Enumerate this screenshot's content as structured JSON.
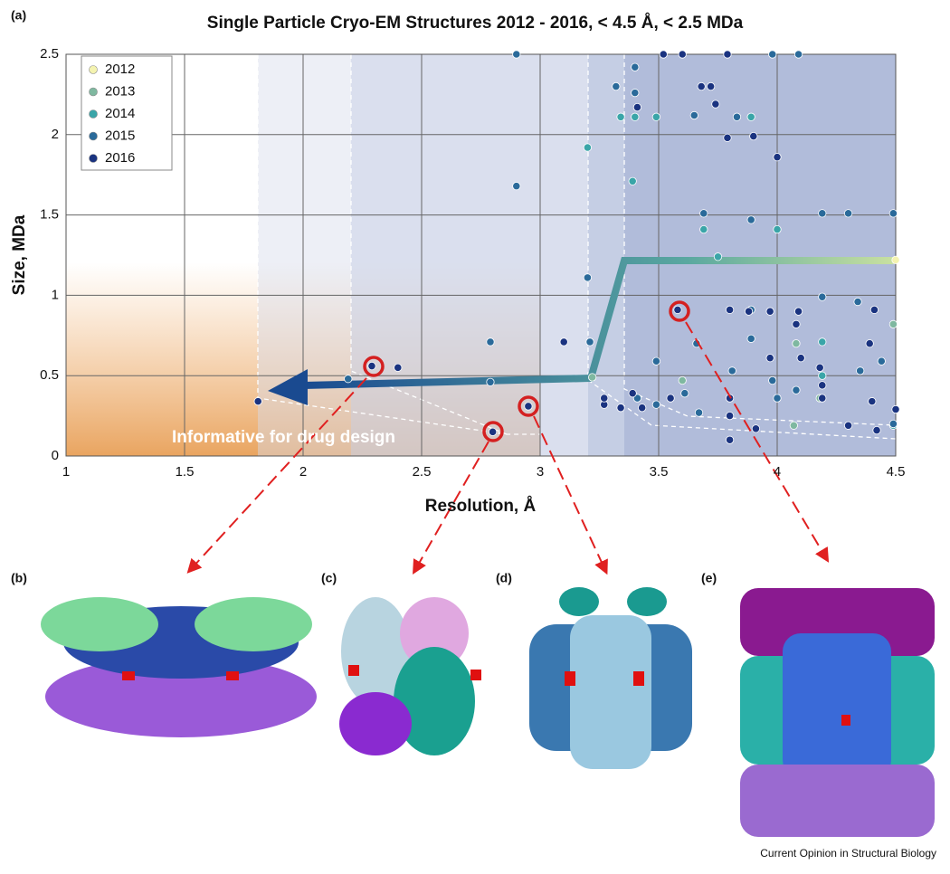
{
  "chart_data": {
    "type": "scatter",
    "title": "Single Particle Cryo-EM Structures 2012 - 2016, < 4.5 Å, < 2.5 MDa",
    "x_label": "Resolution, Å",
    "y_label": "Size, MDa",
    "annotation": "Informative for drug design",
    "panel_labels": [
      "(a)",
      "(b)",
      "(c)",
      "(d)",
      "(e)"
    ],
    "source": "Current Opinion in Structural Biology",
    "xlim": [
      1,
      4.5
    ],
    "ylim": [
      0,
      2.5
    ],
    "xticks": [
      1,
      1.5,
      2,
      2.5,
      3,
      3.5,
      4,
      4.5
    ],
    "yticks": [
      0,
      0.5,
      1,
      1.5,
      2,
      2.5
    ],
    "grid": true,
    "legend": "upper left",
    "series": [
      {
        "name": "2012",
        "color": "#f4f3b0",
        "x": [
          4.5
        ],
        "values": [
          1.22
        ]
      },
      {
        "name": "2013",
        "color": "#7fb8a0",
        "x": [
          4.49,
          4.08,
          3.22,
          4.18,
          4.07,
          3.6
        ],
        "values": [
          0.82,
          0.7,
          0.49,
          0.36,
          0.19,
          0.47
        ]
      },
      {
        "name": "2014",
        "color": "#3aa5a8",
        "x": [
          3.2,
          3.34,
          3.4,
          3.49,
          3.89,
          3.39,
          3.69,
          4.0,
          3.75,
          4.19,
          4.49,
          4.19
        ],
        "values": [
          1.92,
          2.11,
          2.11,
          2.11,
          2.11,
          1.71,
          1.41,
          1.41,
          1.24,
          0.71,
          0.19,
          0.5
        ]
      },
      {
        "name": "2015",
        "color": "#2a6a9a",
        "x": [
          2.9,
          2.9,
          2.79,
          2.79,
          2.19,
          3.2,
          3.21,
          3.32,
          3.4,
          3.4,
          3.65,
          3.83,
          3.98,
          4.09,
          3.69,
          3.89,
          4.19,
          4.3,
          4.49,
          3.89,
          4.19,
          4.34,
          3.89,
          3.49,
          3.61,
          3.66,
          3.81,
          3.98,
          4.44,
          4.0,
          4.35,
          4.08,
          3.41,
          3.49,
          3.67,
          4.49
        ],
        "values": [
          2.5,
          1.68,
          0.71,
          0.46,
          0.48,
          1.11,
          0.71,
          2.3,
          2.42,
          2.26,
          2.12,
          2.11,
          2.5,
          2.5,
          1.51,
          1.47,
          1.51,
          1.51,
          1.51,
          0.91,
          0.99,
          0.96,
          0.73,
          0.59,
          0.39,
          0.7,
          0.53,
          0.47,
          0.59,
          0.36,
          0.53,
          0.41,
          0.36,
          0.32,
          0.27,
          0.2
        ]
      },
      {
        "name": "2016",
        "color": "#1a3380",
        "x": [
          1.81,
          2.29,
          2.4,
          2.8,
          2.95,
          3.1,
          3.27,
          3.41,
          3.52,
          3.6,
          3.58,
          3.79,
          3.9,
          3.79,
          3.68,
          3.72,
          3.74,
          4.0,
          3.88,
          3.97,
          4.08,
          4.41,
          4.09,
          3.8,
          3.97,
          4.1,
          4.39,
          4.18,
          3.39,
          3.55,
          3.8,
          3.8,
          3.8,
          3.91,
          4.19,
          4.19,
          4.3,
          4.4,
          4.42,
          4.5,
          3.27,
          3.34,
          3.43
        ],
        "values": [
          0.34,
          0.56,
          0.55,
          0.15,
          0.31,
          0.71,
          0.32,
          2.17,
          2.5,
          2.5,
          0.91,
          2.5,
          1.99,
          1.98,
          2.3,
          2.3,
          2.19,
          1.86,
          0.9,
          0.9,
          0.82,
          0.91,
          0.9,
          0.91,
          0.61,
          0.61,
          0.7,
          0.55,
          0.39,
          0.36,
          0.36,
          0.25,
          0.1,
          0.17,
          0.44,
          0.36,
          0.19,
          0.34,
          0.16,
          0.29,
          0.36,
          0.3,
          0.3
        ]
      }
    ]
  }
}
